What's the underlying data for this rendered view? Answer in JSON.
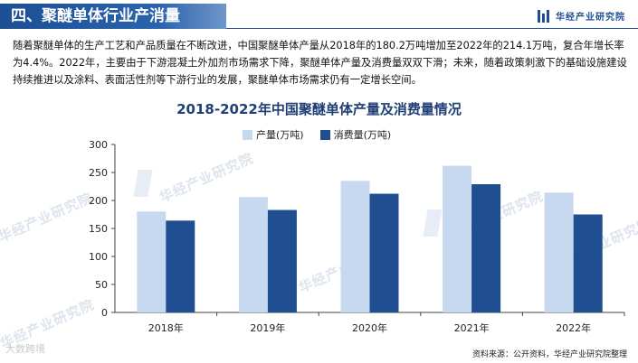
{
  "header": {
    "title": "四、聚醚单体行业产消量",
    "brand": "华经产业研究院"
  },
  "description": "随着聚醚单体的生产工艺和产品质量在不断改进，中国聚醚单体产量从2018年的180.2万吨增加至2022年的214.1万吨，复合年增长率为4.4%。2022年，主要由于下游混凝土外加剂市场需求下降，聚醚单体产量及消费量双双下滑；未来，随着政策刺激下的基础设施建设持续推进以及涂料、表面活性剂等下游行业的发展，聚醚单体市场需求仍有一定增长空间。",
  "watermark_text": "华经产业研究院",
  "corner_mark": "大数跨境",
  "footer": {
    "source": "资料来源：公开资料，华经产业研究院整理"
  },
  "colors": {
    "header_blue": "#1c4f93",
    "production": "#c7d9f1",
    "consumption": "#1f4e91"
  },
  "chart_data": {
    "type": "bar",
    "title": "2018-2022年中国聚醚单体产量及消费量情况",
    "categories": [
      "2018年",
      "2019年",
      "2020年",
      "2021年",
      "2022年"
    ],
    "series": [
      {
        "name": "产量(万吨)",
        "values": [
          180.2,
          206,
          235,
          262,
          214.1
        ],
        "color": "#c7d9f1"
      },
      {
        "name": "消费量(万吨)",
        "values": [
          164,
          183,
          212,
          229,
          175
        ],
        "color": "#1f4e91"
      }
    ],
    "ylim": [
      0,
      300
    ],
    "yticks": [
      0,
      50,
      100,
      150,
      200,
      250,
      300
    ],
    "legend": "top-center",
    "grid": false
  }
}
